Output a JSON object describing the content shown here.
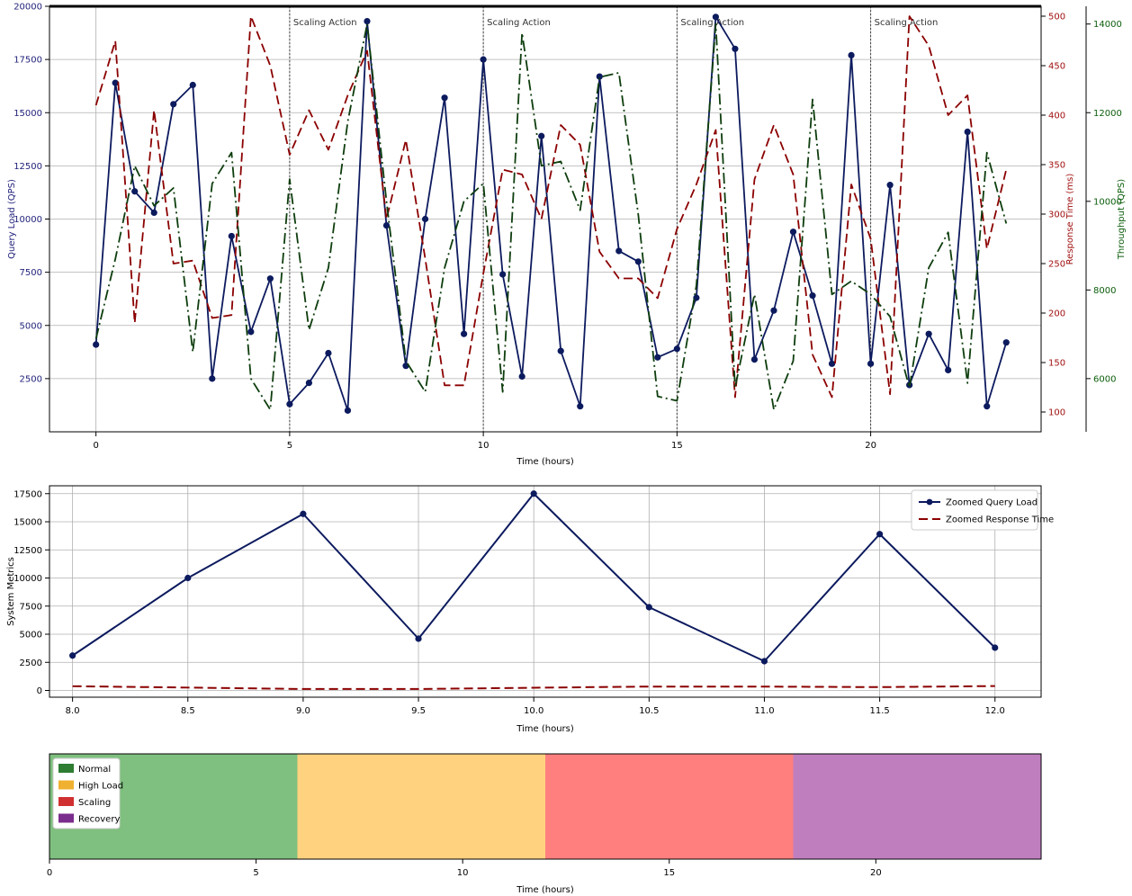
{
  "chart_data": [
    {
      "type": "line",
      "xlabel": "Time (hours)",
      "xlim": [
        -1.2,
        24.4
      ],
      "xticks": [
        0,
        5,
        10,
        15,
        20
      ],
      "grid": true,
      "annotation_text": "Scaling Action",
      "scaling_actions": [
        5,
        10,
        15,
        20
      ],
      "axes": {
        "left": {
          "label": "Query Load (QPS)",
          "color": "#1f1f7a",
          "ylim": [
            0,
            20000
          ],
          "ticks": [
            2500,
            5000,
            7500,
            10000,
            12500,
            15000,
            17500,
            20000
          ]
        },
        "right": {
          "label": "Response Time (ms)",
          "color": "#a01010",
          "ylim": [
            80,
            510
          ],
          "ticks": [
            100,
            150,
            200,
            250,
            300,
            350,
            400,
            450,
            500
          ]
        },
        "right2": {
          "label": "Throughput (QPS)",
          "color": "#0b5d0b",
          "ylim": [
            4800,
            14400
          ],
          "ticks": [
            6000,
            8000,
            10000,
            12000,
            14000
          ]
        }
      },
      "x": [
        0,
        0.5,
        1,
        1.5,
        2,
        2.5,
        3,
        3.5,
        4,
        4.5,
        5,
        5.5,
        6,
        6.5,
        7,
        7.5,
        8,
        8.5,
        9,
        9.5,
        10,
        10.5,
        11,
        11.5,
        12,
        12.5,
        13,
        13.5,
        14,
        14.5,
        15,
        15.5,
        16,
        16.5,
        17,
        17.5,
        18,
        18.5,
        19,
        19.5,
        20,
        20.5,
        21,
        21.5,
        22,
        22.5,
        23,
        23.5
      ],
      "series": [
        {
          "name": "Query Load",
          "axis": "left",
          "color": "#0c1a5e",
          "style": "solid",
          "marker": true,
          "values": [
            4100,
            16400,
            11300,
            10300,
            15400,
            16300,
            2500,
            9200,
            4700,
            7200,
            1300,
            2300,
            3700,
            1000,
            19300,
            9700,
            3100,
            10000,
            15700,
            4600,
            17500,
            7400,
            2600,
            13900,
            3800,
            1200,
            16700,
            8500,
            8000,
            3500,
            3900,
            6300,
            19500,
            18000,
            3400,
            5700,
            9400,
            6400,
            3200,
            17700,
            3200,
            11600,
            2200,
            4600,
            2900,
            14100,
            1200,
            4200
          ]
        },
        {
          "name": "Response Time",
          "axis": "right",
          "color": "#8b0000",
          "style": "dashed",
          "marker": false,
          "values": [
            410,
            475,
            190,
            405,
            250,
            253,
            195,
            198,
            500,
            450,
            360,
            405,
            365,
            420,
            465,
            295,
            375,
            255,
            127,
            127,
            240,
            345,
            340,
            295,
            390,
            370,
            262,
            235,
            235,
            215,
            285,
            330,
            385,
            115,
            335,
            390,
            340,
            158,
            115,
            330,
            275,
            118,
            500,
            470,
            400,
            420,
            265,
            345
          ]
        },
        {
          "name": "Throughput",
          "axis": "right2",
          "color": "#0d3d0d",
          "style": "dashdot",
          "marker": false,
          "values": [
            6900,
            8700,
            10800,
            9900,
            10300,
            6600,
            10400,
            11100,
            6000,
            5300,
            10500,
            7100,
            8500,
            11800,
            14000,
            10000,
            6400,
            5700,
            8500,
            10000,
            10400,
            5700,
            13800,
            10800,
            10900,
            9800,
            12800,
            12900,
            9700,
            5600,
            5500,
            8100,
            14000,
            5800,
            7900,
            5300,
            6400,
            12300,
            7900,
            8200,
            7900,
            7400,
            5800,
            8500,
            9300,
            5900,
            11100,
            9500
          ]
        }
      ]
    },
    {
      "type": "line",
      "xlabel": "Time (hours)",
      "ylabel": "System Metrics",
      "xlim": [
        7.9,
        12.2
      ],
      "ylim": [
        -600,
        18200
      ],
      "xticks": [
        8.0,
        8.5,
        9.0,
        9.5,
        10.0,
        10.5,
        11.0,
        11.5,
        12.0
      ],
      "yticks": [
        0,
        2500,
        5000,
        7500,
        10000,
        12500,
        15000,
        17500
      ],
      "grid": true,
      "x": [
        8.0,
        8.5,
        9.0,
        9.5,
        10.0,
        10.5,
        11.0,
        11.5,
        12.0
      ],
      "series": [
        {
          "name": "Zoomed Query Load",
          "color": "#0c1a5e",
          "style": "solid",
          "marker": true,
          "values": [
            3100,
            10000,
            15700,
            4600,
            17500,
            7400,
            2600,
            13900,
            3800
          ]
        },
        {
          "name": "Zoomed Response Time",
          "color": "#8b0000",
          "style": "dashed",
          "marker": false,
          "values": [
            375,
            255,
            127,
            127,
            240,
            345,
            340,
            295,
            390
          ]
        }
      ]
    },
    {
      "type": "bar",
      "xlabel": "Time (hours)",
      "xlim": [
        0,
        24
      ],
      "xticks": [
        0,
        5,
        10,
        15,
        20
      ],
      "phases": [
        {
          "name": "Normal",
          "start": 0,
          "end": 6,
          "color": "#7fbf7f",
          "legend_color": "#2e7d32"
        },
        {
          "name": "High Load",
          "start": 6,
          "end": 12,
          "color": "#ffd27f",
          "legend_color": "#f0b030"
        },
        {
          "name": "Scaling",
          "start": 12,
          "end": 18,
          "color": "#ff7f7f",
          "legend_color": "#d03030"
        },
        {
          "name": "Recovery",
          "start": 18,
          "end": 24,
          "color": "#bf7fbf",
          "legend_color": "#7b2d8e"
        }
      ]
    }
  ]
}
